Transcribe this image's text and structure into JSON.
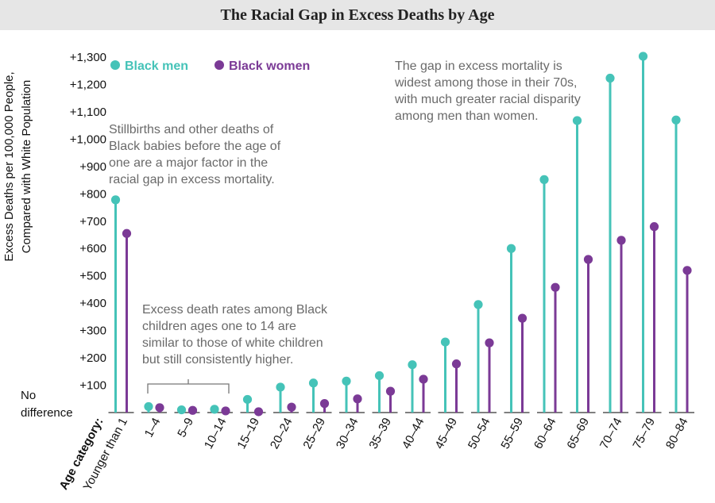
{
  "chart_data": {
    "type": "lollipop",
    "title": "The Racial Gap in Excess Deaths by Age",
    "ylabel": "Excess Deaths per 100,000 People, Compared with White Population",
    "xlabel": "Age category:",
    "ylim": [
      0,
      1300
    ],
    "yticks": [
      "No difference",
      "+100",
      "+200",
      "+300",
      "+400",
      "+500",
      "+600",
      "+700",
      "+800",
      "+900",
      "+1,000",
      "+1,100",
      "+1,200",
      "+1,300"
    ],
    "yzero_label_lines": [
      "No",
      "difference"
    ],
    "categories": [
      "Younger than 1",
      "1–4",
      "5–9",
      "10–14",
      "15–19",
      "20–24",
      "25–29",
      "30–34",
      "35–39",
      "40–44",
      "45–49",
      "50–54",
      "55–59",
      "60–64",
      "65–69",
      "70–74",
      "75–79",
      "80–84"
    ],
    "series": [
      {
        "name": "Black men",
        "color": "#45c3b8",
        "values": [
          778,
          22,
          10,
          12,
          48,
          93,
          108,
          115,
          135,
          175,
          258,
          395,
          600,
          852,
          1068,
          1223,
          1303,
          1070
        ]
      },
      {
        "name": "Black women",
        "color": "#7b3a96",
        "values": [
          655,
          18,
          8,
          6,
          3,
          20,
          33,
          50,
          78,
          122,
          178,
          255,
          345,
          458,
          560,
          630,
          680,
          520
        ]
      }
    ],
    "annotations": [
      {
        "id": "infant",
        "lines": [
          "Stillbirths and other deaths of",
          "Black babies before the age of",
          "one are a major factor in the",
          "racial gap in excess mortality."
        ]
      },
      {
        "id": "children",
        "lines": [
          "Excess death rates among Black",
          "children ages one to 14 are",
          "similar to those of white children",
          "but still consistently higher."
        ]
      },
      {
        "id": "seventies",
        "lines": [
          "The gap in excess mortality is",
          "widest among those in their 70s,",
          "with much greater racial disparity",
          "among men than women."
        ]
      }
    ]
  }
}
